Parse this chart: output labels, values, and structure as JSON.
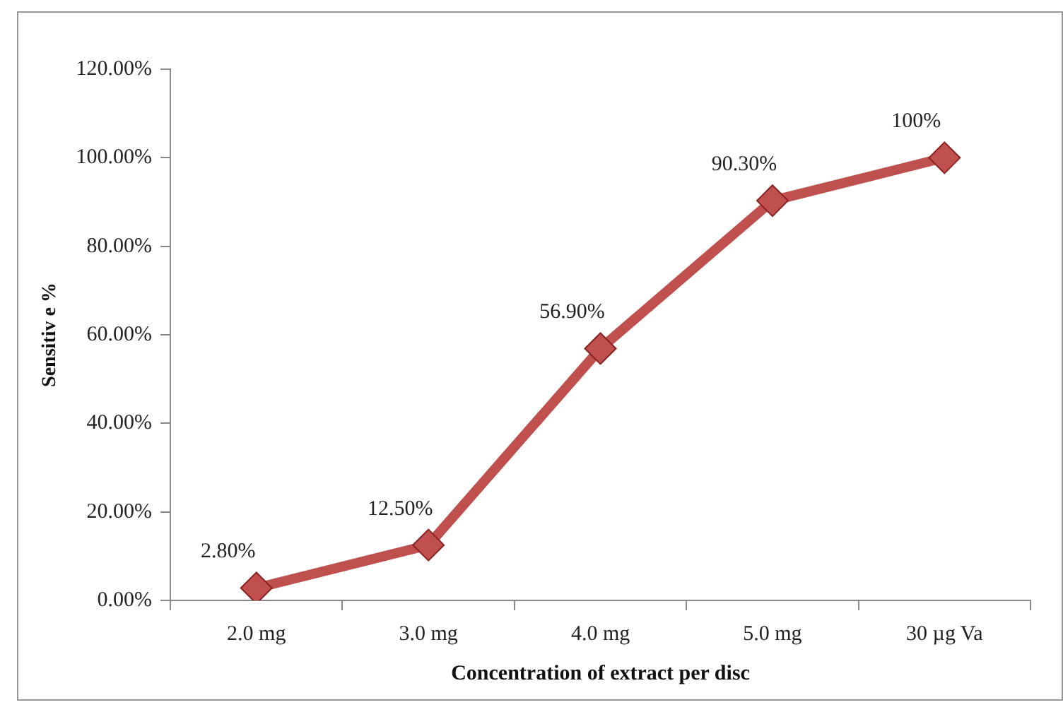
{
  "chart_data": {
    "type": "line",
    "xlabel": "Concentration of extract per disc",
    "ylabel": "Sensitiv e %",
    "categories": [
      "2.0 mg",
      "3.0 mg",
      "4.0 mg",
      "5.0 mg",
      "30 µg Va"
    ],
    "series": [
      {
        "color": "#c0504d",
        "values": [
          2.8,
          12.5,
          56.9,
          90.3,
          100
        ],
        "value_labels": [
          "2.80%",
          "12.50%",
          "56.90%",
          "90.30%",
          "100%"
        ]
      }
    ],
    "ylim": [
      0,
      120
    ],
    "yticks": [
      {
        "value": 0,
        "label": "0.00%"
      },
      {
        "value": 20,
        "label": "20.00%"
      },
      {
        "value": 40,
        "label": "40.00%"
      },
      {
        "value": 60,
        "label": "60.00%"
      },
      {
        "value": 80,
        "label": "80.00%"
      },
      {
        "value": 100,
        "label": "100.00%"
      },
      {
        "value": 120,
        "label": "120.00%"
      }
    ],
    "grid": false,
    "legend": false,
    "marker": "diamond",
    "line_style": "solid"
  }
}
